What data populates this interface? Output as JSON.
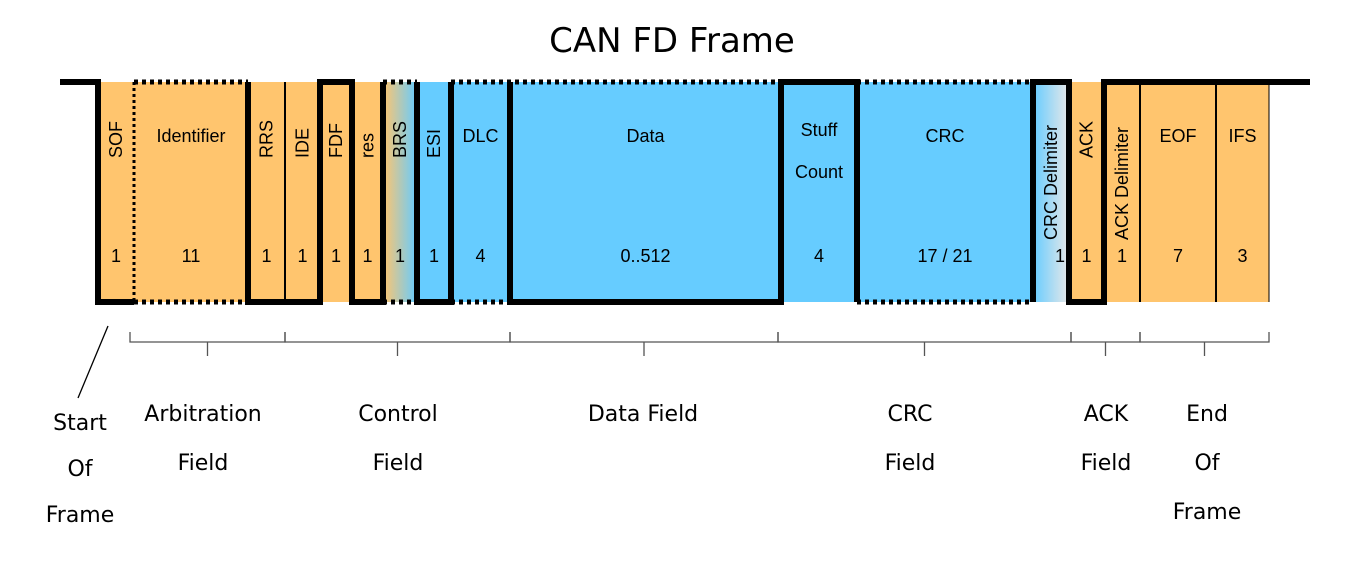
{
  "title": "CAN FD Frame",
  "colors": {
    "orange": "#FFC56E",
    "blue": "#66CCFF",
    "signal": "#000000",
    "divider": "#000000"
  },
  "fields": [
    {
      "id": "sof",
      "name": "SOF",
      "bits": "1",
      "color": "orange",
      "vertical": true
    },
    {
      "id": "identifier",
      "name": "Identifier",
      "bits": "11",
      "color": "orange",
      "vertical": false
    },
    {
      "id": "rrs",
      "name": "RRS",
      "bits": "1",
      "color": "orange",
      "vertical": true
    },
    {
      "id": "ide",
      "name": "IDE",
      "bits": "1",
      "color": "orange",
      "vertical": true
    },
    {
      "id": "fdf",
      "name": "FDF",
      "bits": "1",
      "color": "orange",
      "vertical": true
    },
    {
      "id": "res",
      "name": "res",
      "bits": "1",
      "color": "orange",
      "vertical": true
    },
    {
      "id": "brs",
      "name": "BRS",
      "bits": "1",
      "color": "gradient",
      "vertical": true
    },
    {
      "id": "esi",
      "name": "ESI",
      "bits": "1",
      "color": "blue",
      "vertical": true
    },
    {
      "id": "dlc",
      "name": "DLC",
      "bits": "4",
      "color": "blue",
      "vertical": false
    },
    {
      "id": "data",
      "name": "Data",
      "bits": "0..512",
      "color": "blue",
      "vertical": false
    },
    {
      "id": "stuff-count",
      "name": "Stuff Count",
      "name_lines": [
        "Stuff",
        "Count"
      ],
      "bits": "4",
      "color": "blue",
      "vertical": false
    },
    {
      "id": "crc",
      "name": "CRC",
      "bits": "17 / 21",
      "color": "blue",
      "vertical": false
    },
    {
      "id": "crc-delimiter",
      "name": "CRC Delimiter",
      "bits": "1",
      "color": "gradient2",
      "vertical": true
    },
    {
      "id": "ack",
      "name": "ACK",
      "bits": "1",
      "color": "orange",
      "vertical": true
    },
    {
      "id": "ack-delimiter",
      "name": "ACK Delimiter",
      "bits": "1",
      "color": "orange",
      "vertical": true
    },
    {
      "id": "eof",
      "name": "EOF",
      "bits": "7",
      "color": "orange",
      "vertical": false
    },
    {
      "id": "ifs",
      "name": "IFS",
      "bits": "3",
      "color": "orange",
      "vertical": false
    }
  ],
  "groups": [
    {
      "id": "start-of-frame",
      "label_lines": [
        "Start",
        "Of",
        "Frame"
      ]
    },
    {
      "id": "arbitration-field",
      "label_lines": [
        "Arbitration",
        "Field"
      ]
    },
    {
      "id": "control-field",
      "label_lines": [
        "Control",
        "Field"
      ]
    },
    {
      "id": "data-field",
      "label_lines": [
        "Data Field"
      ]
    },
    {
      "id": "crc-field",
      "label_lines": [
        "CRC",
        "Field"
      ]
    },
    {
      "id": "ack-field",
      "label_lines": [
        "ACK",
        "Field"
      ]
    },
    {
      "id": "end-of-frame",
      "label_lines": [
        "End",
        "Of",
        "Frame"
      ]
    }
  ]
}
